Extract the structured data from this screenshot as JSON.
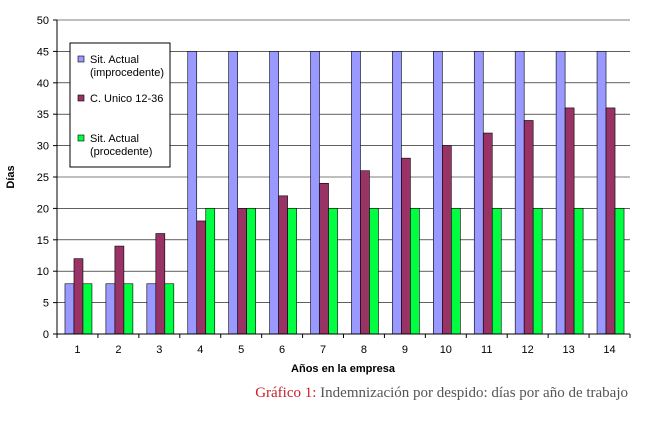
{
  "chart_data": {
    "type": "bar",
    "ylabel": "Días",
    "xlabel": "Años en la empresa",
    "ylim": [
      0,
      50
    ],
    "yticks": [
      0,
      5,
      10,
      15,
      20,
      25,
      30,
      35,
      40,
      45,
      50
    ],
    "grid": true,
    "legend_position": "top-left",
    "categories": [
      "1",
      "2",
      "3",
      "4",
      "5",
      "6",
      "7",
      "8",
      "9",
      "10",
      "11",
      "12",
      "13",
      "14"
    ],
    "series": [
      {
        "name": "Sit. Actual (improcedente)",
        "legend_lines": [
          "Sit. Actual",
          "(improcedente)"
        ],
        "color": "#9999ff",
        "values": [
          8,
          8,
          8,
          45,
          45,
          45,
          45,
          45,
          45,
          45,
          45,
          45,
          45,
          45
        ]
      },
      {
        "name": "C. Unico 12-36",
        "legend_lines": [
          "C. Unico 12-36"
        ],
        "color": "#993366",
        "values": [
          12,
          14,
          16,
          18,
          20,
          22,
          24,
          26,
          28,
          30,
          32,
          34,
          36,
          36
        ]
      },
      {
        "name": "Sit. Actual (procedente)",
        "legend_lines": [
          "Sit. Actual",
          "(procedente)"
        ],
        "color": "#00ff40",
        "values": [
          8,
          8,
          8,
          20,
          20,
          20,
          20,
          20,
          20,
          20,
          20,
          20,
          20,
          20
        ]
      }
    ]
  },
  "caption": {
    "lead": "Gráfico 1:",
    "text": "Indemnización por despido: días por año de trabajo"
  }
}
